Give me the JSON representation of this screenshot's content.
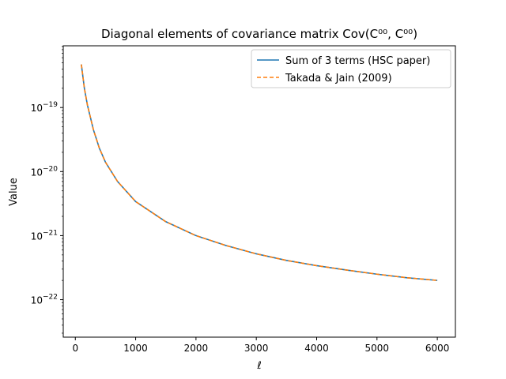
{
  "chart_data": {
    "type": "line",
    "title": "Diagonal elements of covariance matrix Cov(C⁰⁰, C⁰⁰)",
    "xlabel": "ℓ",
    "ylabel": "Value",
    "yscale": "log",
    "xlim": [
      -200,
      6300
    ],
    "ylim": [
      2.6e-23,
      9.2e-19
    ],
    "grid": false,
    "legend_position": "top-right",
    "x_ticks": [
      {
        "value": 0,
        "label": "0"
      },
      {
        "value": 1000,
        "label": "1000"
      },
      {
        "value": 2000,
        "label": "2000"
      },
      {
        "value": 3000,
        "label": "3000"
      },
      {
        "value": 4000,
        "label": "4000"
      },
      {
        "value": 5000,
        "label": "5000"
      },
      {
        "value": 6000,
        "label": "6000"
      }
    ],
    "y_ticks": [
      {
        "value": 1e-22,
        "base": "10",
        "exp": "−22"
      },
      {
        "value": 1e-21,
        "base": "10",
        "exp": "−21"
      },
      {
        "value": 1e-20,
        "base": "10",
        "exp": "−20"
      },
      {
        "value": 1e-19,
        "base": "10",
        "exp": "−19"
      }
    ],
    "x": [
      100,
      150,
      200,
      300,
      400,
      500,
      700,
      1000,
      1500,
      2000,
      2500,
      3000,
      3500,
      4000,
      4500,
      5000,
      5500,
      6000
    ],
    "series": [
      {
        "name": "Sum of 3 terms (HSC paper)",
        "color": "#1f77b4",
        "style": "solid",
        "values": [
          4.7e-19,
          2e-19,
          1.1e-19,
          4.5e-20,
          2.3e-20,
          1.4e-20,
          7e-21,
          3.4e-21,
          1.65e-21,
          1e-21,
          7e-22,
          5.2e-22,
          4.1e-22,
          3.4e-22,
          2.9e-22,
          2.5e-22,
          2.2e-22,
          2e-22
        ]
      },
      {
        "name": "Takada & Jain (2009)",
        "color": "#ff7f0e",
        "style": "dashed",
        "values": [
          4.7e-19,
          2e-19,
          1.1e-19,
          4.5e-20,
          2.3e-20,
          1.4e-20,
          7e-21,
          3.4e-21,
          1.65e-21,
          1e-21,
          7e-22,
          5.2e-22,
          4.1e-22,
          3.4e-22,
          2.9e-22,
          2.5e-22,
          2.2e-22,
          2e-22
        ]
      }
    ]
  }
}
